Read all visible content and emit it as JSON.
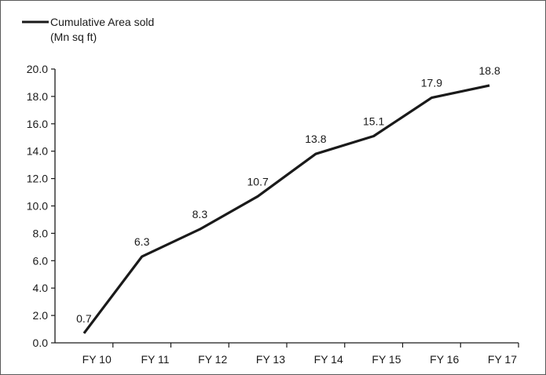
{
  "chart_data": {
    "type": "line",
    "categories": [
      "FY 10",
      "FY 11",
      "FY 12",
      "FY 13",
      "FY 14",
      "FY 15",
      "FY 16",
      "FY 17"
    ],
    "series": [
      {
        "name": "Cumulative Area sold (Mn sq ft)",
        "legend_lines": [
          "Cumulative Area sold",
          "(Mn sq ft)"
        ],
        "values": [
          0.7,
          6.3,
          8.3,
          10.7,
          13.8,
          15.1,
          17.9,
          18.8
        ],
        "data_labels": [
          "0.7",
          "6.3",
          "8.3",
          "10.7",
          "13.8",
          "15.1",
          "17.9",
          "18.8"
        ],
        "color": "#1a1a1a"
      }
    ],
    "ylim": [
      0,
      20
    ],
    "yticks": [
      0,
      2,
      4,
      6,
      8,
      10,
      12,
      14,
      16,
      18,
      20
    ],
    "ytick_labels": [
      "0.0",
      "2.0",
      "4.0",
      "6.0",
      "8.0",
      "10.0",
      "12.0",
      "14.0",
      "16.0",
      "18.0",
      "20.0"
    ],
    "grid": false,
    "legend_position": "top-left"
  }
}
